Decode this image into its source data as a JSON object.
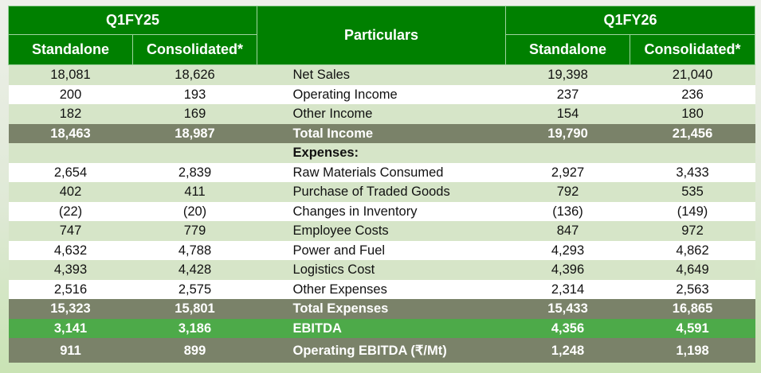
{
  "header": {
    "period_left": "Q1FY25",
    "period_right": "Q1FY26",
    "particulars": "Particulars",
    "standalone": "Standalone",
    "consolidated": "Consolidated*"
  },
  "colors": {
    "header_green": "#008000",
    "total_row": "#7a8269",
    "ebitda_row": "#4daa49",
    "alt_row": "#d6e5c8"
  },
  "rows": [
    {
      "label": "Net Sales",
      "q1fy25_standalone": "18,081",
      "q1fy25_consolidated": "18,626",
      "q1fy26_standalone": "19,398",
      "q1fy26_consolidated": "21,040"
    },
    {
      "label": "Operating Income",
      "q1fy25_standalone": "200",
      "q1fy25_consolidated": "193",
      "q1fy26_standalone": "237",
      "q1fy26_consolidated": "236"
    },
    {
      "label": "Other Income",
      "q1fy25_standalone": "182",
      "q1fy25_consolidated": "169",
      "q1fy26_standalone": "154",
      "q1fy26_consolidated": "180"
    },
    {
      "label": "Total Income",
      "q1fy25_standalone": "18,463",
      "q1fy25_consolidated": "18,987",
      "q1fy26_standalone": "19,790",
      "q1fy26_consolidated": "21,456"
    },
    {
      "label": "Expenses:",
      "q1fy25_standalone": "",
      "q1fy25_consolidated": "",
      "q1fy26_standalone": "",
      "q1fy26_consolidated": ""
    },
    {
      "label": "Raw Materials Consumed",
      "q1fy25_standalone": "2,654",
      "q1fy25_consolidated": "2,839",
      "q1fy26_standalone": "2,927",
      "q1fy26_consolidated": "3,433"
    },
    {
      "label": "Purchase of Traded Goods",
      "q1fy25_standalone": "402",
      "q1fy25_consolidated": "411",
      "q1fy26_standalone": "792",
      "q1fy26_consolidated": "535"
    },
    {
      "label": "Changes in Inventory",
      "q1fy25_standalone": "(22)",
      "q1fy25_consolidated": "(20)",
      "q1fy26_standalone": "(136)",
      "q1fy26_consolidated": "(149)"
    },
    {
      "label": "Employee Costs",
      "q1fy25_standalone": "747",
      "q1fy25_consolidated": "779",
      "q1fy26_standalone": "847",
      "q1fy26_consolidated": "972"
    },
    {
      "label": "Power and Fuel",
      "q1fy25_standalone": "4,632",
      "q1fy25_consolidated": "4,788",
      "q1fy26_standalone": "4,293",
      "q1fy26_consolidated": "4,862"
    },
    {
      "label": "Logistics Cost",
      "q1fy25_standalone": "4,393",
      "q1fy25_consolidated": "4,428",
      "q1fy26_standalone": "4,396",
      "q1fy26_consolidated": "4,649"
    },
    {
      "label": "Other Expenses",
      "q1fy25_standalone": "2,516",
      "q1fy25_consolidated": "2,575",
      "q1fy26_standalone": "2,314",
      "q1fy26_consolidated": "2,563"
    },
    {
      "label": "Total Expenses",
      "q1fy25_standalone": "15,323",
      "q1fy25_consolidated": "15,801",
      "q1fy26_standalone": "15,433",
      "q1fy26_consolidated": "16,865"
    },
    {
      "label": "EBITDA",
      "q1fy25_standalone": "3,141",
      "q1fy25_consolidated": "3,186",
      "q1fy26_standalone": "4,356",
      "q1fy26_consolidated": "4,591"
    },
    {
      "label": "Operating EBITDA (₹/Mt)",
      "q1fy25_standalone": "911",
      "q1fy25_consolidated": "899",
      "q1fy26_standalone": "1,248",
      "q1fy26_consolidated": "1,198"
    }
  ]
}
